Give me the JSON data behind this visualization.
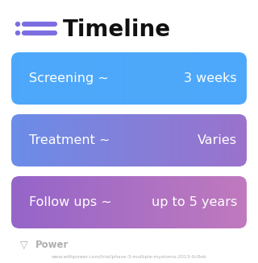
{
  "title": "Timeline",
  "bg_color": "#ffffff",
  "rows": [
    {
      "label": "Screening ~",
      "value": "3 weeks",
      "color_left": "#4da8fb",
      "color_right": "#4da8fb"
    },
    {
      "label": "Treatment ~",
      "value": "Varies",
      "color_left": "#6b8de8",
      "color_right": "#9b72cc"
    },
    {
      "label": "Follow ups ~",
      "value": "up to 5 years",
      "color_left": "#9565c9",
      "color_right": "#c07abe"
    }
  ],
  "icon_color": "#7c6ee0",
  "title_fontsize": 20,
  "row_fontsize": 11.5,
  "footer_text": "Power",
  "footer_url": "www.withpower.com/trial/phase-3-multiple-myeloma-2013-0c8eb",
  "footer_color": "#b0b0b0"
}
